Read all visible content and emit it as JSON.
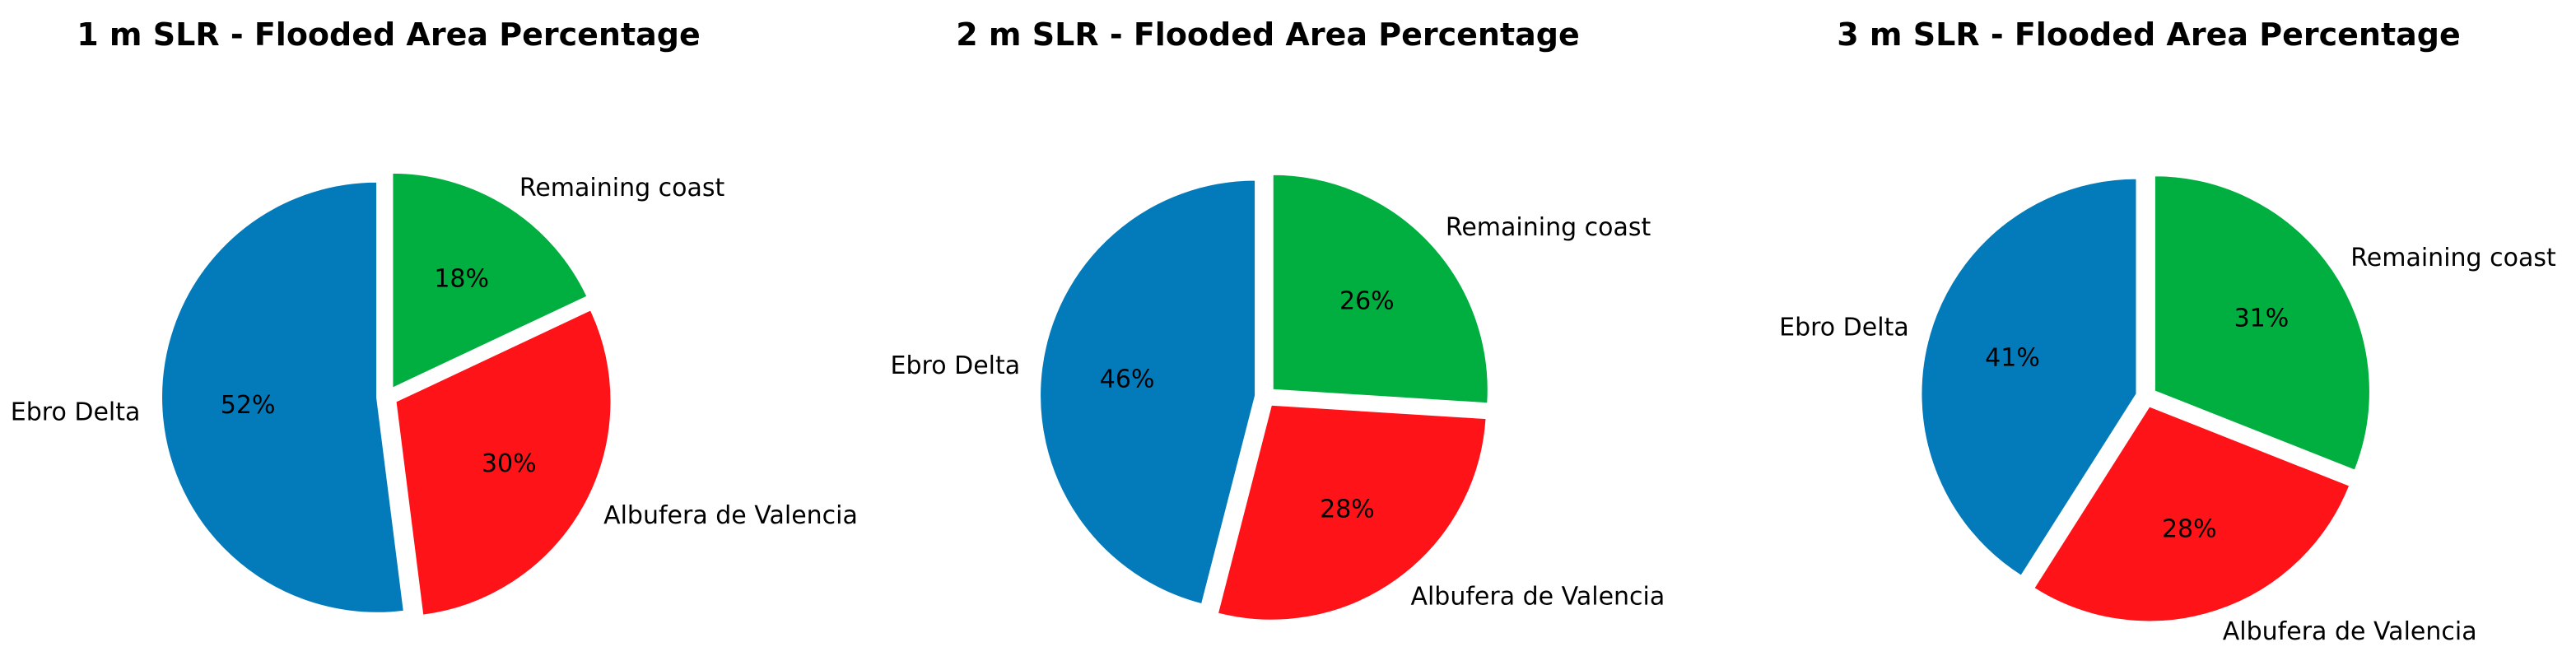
{
  "colors": {
    "Ebro Delta": "#037bbb",
    "Albufera de Valencia": "#fe1319",
    "Remaining coast": "#00af3f"
  },
  "chart_data": [
    {
      "type": "pie",
      "title": "1 m SLR - Flooded Area Percentage",
      "labels": [
        "Remaining coast",
        "Albufera de Valencia",
        "Ebro Delta"
      ],
      "values": [
        18,
        30,
        52
      ],
      "value_labels": [
        "18%",
        "30%",
        "52%"
      ],
      "exploded": true
    },
    {
      "type": "pie",
      "title": "2 m SLR - Flooded Area Percentage",
      "labels": [
        "Remaining coast",
        "Albufera de Valencia",
        "Ebro Delta"
      ],
      "values": [
        26,
        28,
        46
      ],
      "value_labels": [
        "26%",
        "28%",
        "46%"
      ],
      "exploded": true
    },
    {
      "type": "pie",
      "title": "3 m SLR - Flooded Area Percentage",
      "labels": [
        "Remaining coast",
        "Albufera de Valencia",
        "Ebro Delta"
      ],
      "values": [
        31,
        28,
        41
      ],
      "value_labels": [
        "31%",
        "28%",
        "41%"
      ],
      "exploded": true
    }
  ]
}
